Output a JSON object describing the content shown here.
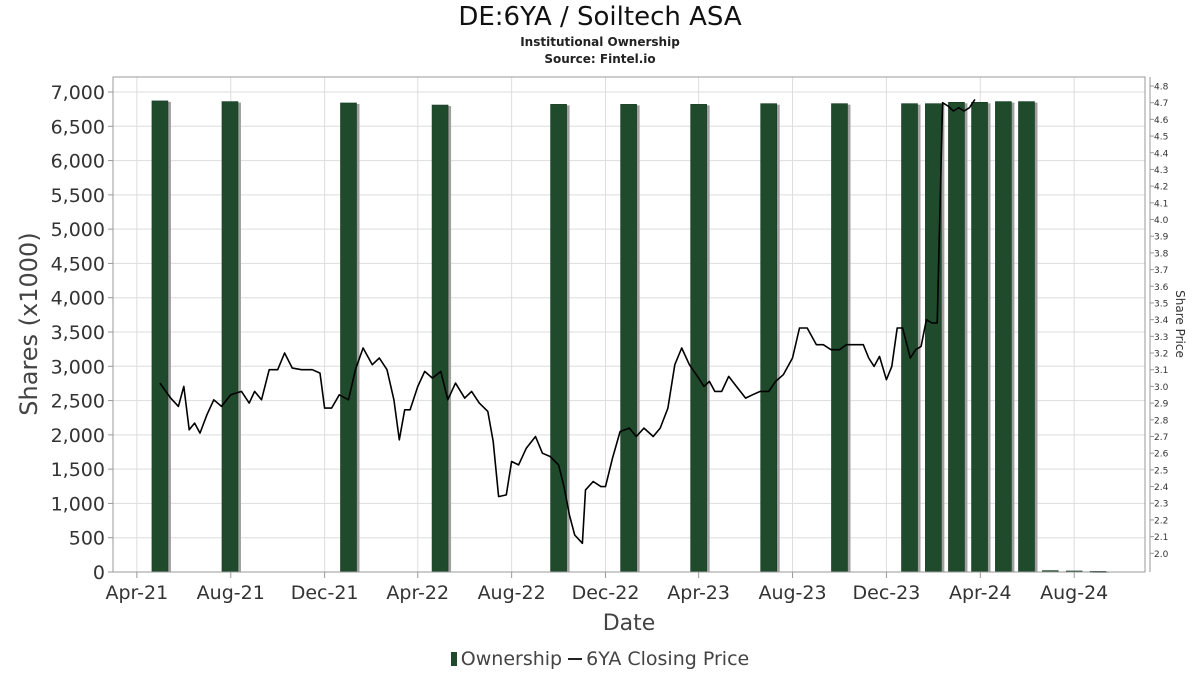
{
  "title": "DE:6YA / Soiltech ASA",
  "subtitle": "Institutional Ownership",
  "source": "Source: Fintel.io",
  "colors": {
    "bar": "#1f4a2c",
    "bar_shadow": "#a0a0a0",
    "line": "#000000",
    "grid": "#dddddd"
  },
  "legend": {
    "ownership": "Ownership",
    "price": "6YA Closing Price"
  },
  "chart_data": {
    "type": "bar",
    "title": "DE:6YA / Soiltech ASA",
    "xlabel": "Date",
    "ylabel": "Shares (x1000)",
    "y2label": "Share Price",
    "grid": true,
    "legend_position": "bottom",
    "x_range": [
      "2021-03-01",
      "2024-11-01"
    ],
    "x_ticks": [
      {
        "date": "2021-04-01",
        "label": "Apr-21"
      },
      {
        "date": "2021-08-01",
        "label": "Aug-21"
      },
      {
        "date": "2021-12-01",
        "label": "Dec-21"
      },
      {
        "date": "2022-04-01",
        "label": "Apr-22"
      },
      {
        "date": "2022-08-01",
        "label": "Aug-22"
      },
      {
        "date": "2022-12-01",
        "label": "Dec-22"
      },
      {
        "date": "2023-04-01",
        "label": "Apr-23"
      },
      {
        "date": "2023-08-01",
        "label": "Aug-23"
      },
      {
        "date": "2023-12-01",
        "label": "Dec-23"
      },
      {
        "date": "2024-04-01",
        "label": "Apr-24"
      },
      {
        "date": "2024-08-01",
        "label": "Aug-24"
      }
    ],
    "ylim": [
      0,
      7000
    ],
    "y_ticks": [
      0,
      500,
      1000,
      1500,
      2000,
      2500,
      3000,
      3500,
      4000,
      4500,
      5000,
      5500,
      6000,
      6500,
      7000
    ],
    "y2lim": [
      1.9,
      4.8
    ],
    "y2_ticks": [
      2.0,
      2.1,
      2.2,
      2.3,
      2.4,
      2.5,
      2.6,
      2.7,
      2.8,
      2.9,
      3.0,
      3.1,
      3.2,
      3.3,
      3.4,
      3.5,
      3.6,
      3.7,
      3.8,
      3.9,
      4.0,
      4.1,
      4.2,
      4.3,
      4.4,
      4.5,
      4.6,
      4.7,
      4.8
    ],
    "series": [
      {
        "name": "Ownership",
        "type": "bar",
        "axis": "left",
        "points": [
          {
            "x": "2021-05-01",
            "y": 6870
          },
          {
            "x": "2021-07-31",
            "y": 6860
          },
          {
            "x": "2022-01-01",
            "y": 6840
          },
          {
            "x": "2022-04-30",
            "y": 6810
          },
          {
            "x": "2022-10-01",
            "y": 6820
          },
          {
            "x": "2022-12-31",
            "y": 6820
          },
          {
            "x": "2023-04-01",
            "y": 6820
          },
          {
            "x": "2023-07-01",
            "y": 6830
          },
          {
            "x": "2023-10-01",
            "y": 6830
          },
          {
            "x": "2023-12-31",
            "y": 6830
          },
          {
            "x": "2024-01-31",
            "y": 6830
          },
          {
            "x": "2024-03-01",
            "y": 6850
          },
          {
            "x": "2024-03-31",
            "y": 6850
          },
          {
            "x": "2024-05-01",
            "y": 6860
          },
          {
            "x": "2024-05-31",
            "y": 6860
          },
          {
            "x": "2024-07-01",
            "y": 20
          },
          {
            "x": "2024-08-01",
            "y": 15
          },
          {
            "x": "2024-09-01",
            "y": 10
          }
        ]
      },
      {
        "name": "6YA Closing Price",
        "type": "line",
        "axis": "right",
        "points": [
          {
            "x": "2021-05-01",
            "y": 3.02
          },
          {
            "x": "2021-05-15",
            "y": 2.93
          },
          {
            "x": "2021-05-25",
            "y": 2.88
          },
          {
            "x": "2021-06-01",
            "y": 3.0
          },
          {
            "x": "2021-06-08",
            "y": 2.74
          },
          {
            "x": "2021-06-15",
            "y": 2.78
          },
          {
            "x": "2021-06-22",
            "y": 2.72
          },
          {
            "x": "2021-07-01",
            "y": 2.83
          },
          {
            "x": "2021-07-10",
            "y": 2.92
          },
          {
            "x": "2021-07-20",
            "y": 2.88
          },
          {
            "x": "2021-08-01",
            "y": 2.95
          },
          {
            "x": "2021-08-15",
            "y": 2.97
          },
          {
            "x": "2021-08-25",
            "y": 2.9
          },
          {
            "x": "2021-09-01",
            "y": 2.97
          },
          {
            "x": "2021-09-10",
            "y": 2.92
          },
          {
            "x": "2021-09-20",
            "y": 3.1
          },
          {
            "x": "2021-10-01",
            "y": 3.1
          },
          {
            "x": "2021-10-10",
            "y": 3.2
          },
          {
            "x": "2021-10-20",
            "y": 3.11
          },
          {
            "x": "2021-11-01",
            "y": 3.1
          },
          {
            "x": "2021-11-15",
            "y": 3.1
          },
          {
            "x": "2021-11-25",
            "y": 3.08
          },
          {
            "x": "2021-12-01",
            "y": 2.87
          },
          {
            "x": "2021-12-10",
            "y": 2.87
          },
          {
            "x": "2021-12-20",
            "y": 2.95
          },
          {
            "x": "2022-01-01",
            "y": 2.92
          },
          {
            "x": "2022-01-10",
            "y": 3.1
          },
          {
            "x": "2022-01-20",
            "y": 3.23
          },
          {
            "x": "2022-02-01",
            "y": 3.13
          },
          {
            "x": "2022-02-10",
            "y": 3.17
          },
          {
            "x": "2022-02-20",
            "y": 3.1
          },
          {
            "x": "2022-03-01",
            "y": 2.92
          },
          {
            "x": "2022-03-08",
            "y": 2.68
          },
          {
            "x": "2022-03-15",
            "y": 2.86
          },
          {
            "x": "2022-03-22",
            "y": 2.86
          },
          {
            "x": "2022-04-01",
            "y": 3.0
          },
          {
            "x": "2022-04-10",
            "y": 3.09
          },
          {
            "x": "2022-04-20",
            "y": 3.05
          },
          {
            "x": "2022-05-01",
            "y": 3.09
          },
          {
            "x": "2022-05-10",
            "y": 2.92
          },
          {
            "x": "2022-05-20",
            "y": 3.02
          },
          {
            "x": "2022-06-01",
            "y": 2.93
          },
          {
            "x": "2022-06-10",
            "y": 2.97
          },
          {
            "x": "2022-06-20",
            "y": 2.9
          },
          {
            "x": "2022-07-01",
            "y": 2.85
          },
          {
            "x": "2022-07-08",
            "y": 2.67
          },
          {
            "x": "2022-07-15",
            "y": 2.34
          },
          {
            "x": "2022-07-25",
            "y": 2.35
          },
          {
            "x": "2022-08-01",
            "y": 2.55
          },
          {
            "x": "2022-08-10",
            "y": 2.53
          },
          {
            "x": "2022-08-20",
            "y": 2.63
          },
          {
            "x": "2022-09-01",
            "y": 2.7
          },
          {
            "x": "2022-09-10",
            "y": 2.6
          },
          {
            "x": "2022-09-20",
            "y": 2.58
          },
          {
            "x": "2022-10-01",
            "y": 2.53
          },
          {
            "x": "2022-10-08",
            "y": 2.4
          },
          {
            "x": "2022-10-15",
            "y": 2.23
          },
          {
            "x": "2022-10-22",
            "y": 2.11
          },
          {
            "x": "2022-11-01",
            "y": 2.06
          },
          {
            "x": "2022-11-05",
            "y": 2.38
          },
          {
            "x": "2022-11-15",
            "y": 2.43
          },
          {
            "x": "2022-11-25",
            "y": 2.4
          },
          {
            "x": "2022-12-01",
            "y": 2.4
          },
          {
            "x": "2022-12-10",
            "y": 2.57
          },
          {
            "x": "2022-12-20",
            "y": 2.73
          },
          {
            "x": "2023-01-01",
            "y": 2.75
          },
          {
            "x": "2023-01-10",
            "y": 2.7
          },
          {
            "x": "2023-01-20",
            "y": 2.75
          },
          {
            "x": "2023-02-01",
            "y": 2.7
          },
          {
            "x": "2023-02-10",
            "y": 2.75
          },
          {
            "x": "2023-02-20",
            "y": 2.87
          },
          {
            "x": "2023-03-01",
            "y": 3.13
          },
          {
            "x": "2023-03-10",
            "y": 3.23
          },
          {
            "x": "2023-03-20",
            "y": 3.13
          },
          {
            "x": "2023-04-01",
            "y": 3.05
          },
          {
            "x": "2023-04-08",
            "y": 3.0
          },
          {
            "x": "2023-04-15",
            "y": 3.03
          },
          {
            "x": "2023-04-22",
            "y": 2.97
          },
          {
            "x": "2023-05-01",
            "y": 2.97
          },
          {
            "x": "2023-05-10",
            "y": 3.06
          },
          {
            "x": "2023-05-20",
            "y": 3.0
          },
          {
            "x": "2023-06-01",
            "y": 2.93
          },
          {
            "x": "2023-06-10",
            "y": 2.95
          },
          {
            "x": "2023-06-20",
            "y": 2.97
          },
          {
            "x": "2023-07-01",
            "y": 2.97
          },
          {
            "x": "2023-07-10",
            "y": 3.03
          },
          {
            "x": "2023-07-20",
            "y": 3.07
          },
          {
            "x": "2023-08-01",
            "y": 3.17
          },
          {
            "x": "2023-08-10",
            "y": 3.35
          },
          {
            "x": "2023-08-20",
            "y": 3.35
          },
          {
            "x": "2023-09-01",
            "y": 3.25
          },
          {
            "x": "2023-09-10",
            "y": 3.25
          },
          {
            "x": "2023-09-20",
            "y": 3.22
          },
          {
            "x": "2023-10-01",
            "y": 3.22
          },
          {
            "x": "2023-10-10",
            "y": 3.25
          },
          {
            "x": "2023-10-20",
            "y": 3.25
          },
          {
            "x": "2023-11-01",
            "y": 3.25
          },
          {
            "x": "2023-11-08",
            "y": 3.17
          },
          {
            "x": "2023-11-15",
            "y": 3.12
          },
          {
            "x": "2023-11-22",
            "y": 3.18
          },
          {
            "x": "2023-12-01",
            "y": 3.04
          },
          {
            "x": "2023-12-08",
            "y": 3.12
          },
          {
            "x": "2023-12-15",
            "y": 3.35
          },
          {
            "x": "2023-12-22",
            "y": 3.35
          },
          {
            "x": "2024-01-01",
            "y": 3.17
          },
          {
            "x": "2024-01-08",
            "y": 3.22
          },
          {
            "x": "2024-01-15",
            "y": 3.24
          },
          {
            "x": "2024-01-22",
            "y": 3.4
          },
          {
            "x": "2024-01-29",
            "y": 3.38
          },
          {
            "x": "2024-02-05",
            "y": 3.38
          },
          {
            "x": "2024-02-12",
            "y": 4.7
          },
          {
            "x": "2024-02-19",
            "y": 4.68
          },
          {
            "x": "2024-02-26",
            "y": 4.65
          },
          {
            "x": "2024-03-04",
            "y": 4.67
          },
          {
            "x": "2024-03-11",
            "y": 4.65
          },
          {
            "x": "2024-03-18",
            "y": 4.67
          },
          {
            "x": "2024-03-25",
            "y": 4.72
          }
        ]
      }
    ]
  }
}
